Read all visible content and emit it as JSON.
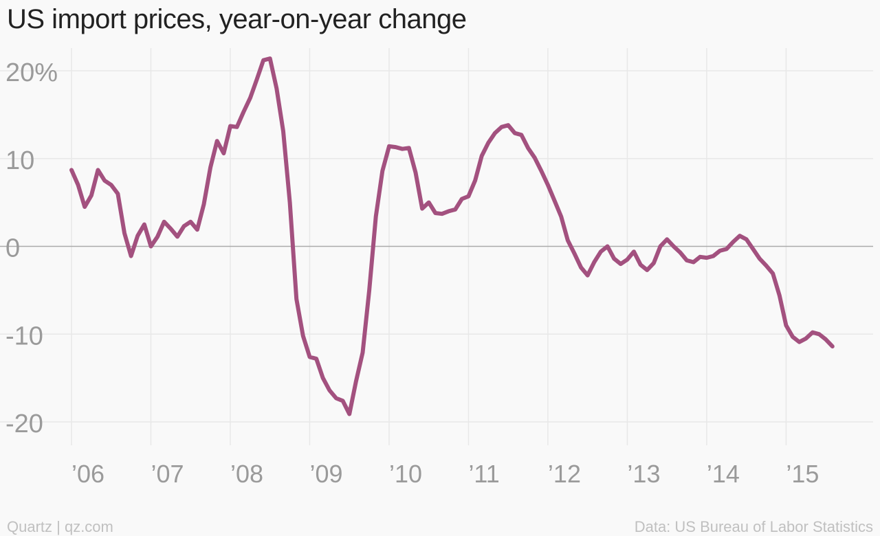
{
  "chart_data": {
    "type": "line",
    "title": "US import prices, year-on-year change",
    "xlabel": "",
    "ylabel": "",
    "ylim": [
      -23,
      23
    ],
    "xlim": [
      2005.99,
      2016.1
    ],
    "grid": true,
    "x_ticks": [
      {
        "value": 2006,
        "label": "’06"
      },
      {
        "value": 2007,
        "label": "’07"
      },
      {
        "value": 2008,
        "label": "’08"
      },
      {
        "value": 2009,
        "label": "’09"
      },
      {
        "value": 2010,
        "label": "’10"
      },
      {
        "value": 2011,
        "label": "’11"
      },
      {
        "value": 2012,
        "label": "’12"
      },
      {
        "value": 2013,
        "label": "’13"
      },
      {
        "value": 2014,
        "label": "’14"
      },
      {
        "value": 2015,
        "label": "’15"
      }
    ],
    "y_ticks": [
      {
        "value": 20,
        "label": "20%"
      },
      {
        "value": 10,
        "label": "10"
      },
      {
        "value": 0,
        "label": "0"
      },
      {
        "value": -10,
        "label": "-10"
      },
      {
        "value": -20,
        "label": "-20"
      }
    ],
    "series": [
      {
        "color": "#a3517f",
        "points": [
          [
            "2006-01",
            8.7
          ],
          [
            "2006-02",
            7.0
          ],
          [
            "2006-03",
            4.5
          ],
          [
            "2006-04",
            5.8
          ],
          [
            "2006-05",
            8.7
          ],
          [
            "2006-06",
            7.5
          ],
          [
            "2006-07",
            7.0
          ],
          [
            "2006-08",
            6.0
          ],
          [
            "2006-09",
            1.5
          ],
          [
            "2006-10",
            -1.1
          ],
          [
            "2006-11",
            1.2
          ],
          [
            "2006-12",
            2.5
          ],
          [
            "2007-01",
            0.0
          ],
          [
            "2007-02",
            1.1
          ],
          [
            "2007-03",
            2.8
          ],
          [
            "2007-04",
            2.0
          ],
          [
            "2007-05",
            1.1
          ],
          [
            "2007-06",
            2.3
          ],
          [
            "2007-07",
            2.8
          ],
          [
            "2007-08",
            1.9
          ],
          [
            "2007-09",
            4.8
          ],
          [
            "2007-10",
            9.0
          ],
          [
            "2007-11",
            12.0
          ],
          [
            "2007-12",
            10.6
          ],
          [
            "2008-01",
            13.7
          ],
          [
            "2008-02",
            13.6
          ],
          [
            "2008-03",
            15.3
          ],
          [
            "2008-04",
            16.9
          ],
          [
            "2008-05",
            19.0
          ],
          [
            "2008-06",
            21.2
          ],
          [
            "2008-07",
            21.4
          ],
          [
            "2008-08",
            18.0
          ],
          [
            "2008-09",
            13.1
          ],
          [
            "2008-10",
            5.0
          ],
          [
            "2008-11",
            -6.0
          ],
          [
            "2008-12",
            -10.2
          ],
          [
            "2009-01",
            -12.6
          ],
          [
            "2009-02",
            -12.8
          ],
          [
            "2009-03",
            -15.0
          ],
          [
            "2009-04",
            -16.4
          ],
          [
            "2009-05",
            -17.3
          ],
          [
            "2009-06",
            -17.6
          ],
          [
            "2009-07",
            -19.1
          ],
          [
            "2009-08",
            -15.4
          ],
          [
            "2009-09",
            -12.1
          ],
          [
            "2009-10",
            -5.0
          ],
          [
            "2009-11",
            3.4
          ],
          [
            "2009-12",
            8.6
          ],
          [
            "2010-01",
            11.4
          ],
          [
            "2010-02",
            11.3
          ],
          [
            "2010-03",
            11.1
          ],
          [
            "2010-04",
            11.2
          ],
          [
            "2010-05",
            8.4
          ],
          [
            "2010-06",
            4.3
          ],
          [
            "2010-07",
            5.0
          ],
          [
            "2010-08",
            3.8
          ],
          [
            "2010-09",
            3.7
          ],
          [
            "2010-10",
            4.0
          ],
          [
            "2010-11",
            4.2
          ],
          [
            "2010-12",
            5.4
          ],
          [
            "2011-01",
            5.7
          ],
          [
            "2011-02",
            7.5
          ],
          [
            "2011-03",
            10.3
          ],
          [
            "2011-04",
            11.8
          ],
          [
            "2011-05",
            12.9
          ],
          [
            "2011-06",
            13.6
          ],
          [
            "2011-07",
            13.8
          ],
          [
            "2011-08",
            12.9
          ],
          [
            "2011-09",
            12.7
          ],
          [
            "2011-10",
            11.2
          ],
          [
            "2011-11",
            10.1
          ],
          [
            "2011-12",
            8.6
          ],
          [
            "2012-01",
            7.0
          ],
          [
            "2012-02",
            5.2
          ],
          [
            "2012-03",
            3.4
          ],
          [
            "2012-04",
            0.7
          ],
          [
            "2012-05",
            -0.8
          ],
          [
            "2012-06",
            -2.4
          ],
          [
            "2012-07",
            -3.3
          ],
          [
            "2012-08",
            -1.8
          ],
          [
            "2012-09",
            -0.6
          ],
          [
            "2012-10",
            0.0
          ],
          [
            "2012-11",
            -1.4
          ],
          [
            "2012-12",
            -2.0
          ],
          [
            "2013-01",
            -1.5
          ],
          [
            "2013-02",
            -0.6
          ],
          [
            "2013-03",
            -2.1
          ],
          [
            "2013-04",
            -2.7
          ],
          [
            "2013-05",
            -1.9
          ],
          [
            "2013-06",
            0.0
          ],
          [
            "2013-07",
            0.8
          ],
          [
            "2013-08",
            0.0
          ],
          [
            "2013-09",
            -0.7
          ],
          [
            "2013-10",
            -1.6
          ],
          [
            "2013-11",
            -1.8
          ],
          [
            "2013-12",
            -1.2
          ],
          [
            "2014-01",
            -1.3
          ],
          [
            "2014-02",
            -1.1
          ],
          [
            "2014-03",
            -0.5
          ],
          [
            "2014-04",
            -0.3
          ],
          [
            "2014-05",
            0.5
          ],
          [
            "2014-06",
            1.2
          ],
          [
            "2014-07",
            0.8
          ],
          [
            "2014-08",
            -0.3
          ],
          [
            "2014-09",
            -1.4
          ],
          [
            "2014-10",
            -2.2
          ],
          [
            "2014-11",
            -3.1
          ],
          [
            "2014-12",
            -5.6
          ],
          [
            "2015-01",
            -9.0
          ],
          [
            "2015-02",
            -10.3
          ],
          [
            "2015-03",
            -10.9
          ],
          [
            "2015-04",
            -10.5
          ],
          [
            "2015-05",
            -9.8
          ],
          [
            "2015-06",
            -10.0
          ],
          [
            "2015-07",
            -10.6
          ],
          [
            "2015-08",
            -11.4
          ]
        ]
      }
    ]
  },
  "footer": {
    "source_left": "Quartz | qz.com",
    "source_right": "Data: US Bureau of Labor Statistics"
  },
  "colors": {
    "line": "#a3517f",
    "grid": "#e8e8e8",
    "zero_line": "#aaaaaa",
    "tick_label": "#9a9a9a",
    "background": "#f9f9f9"
  }
}
